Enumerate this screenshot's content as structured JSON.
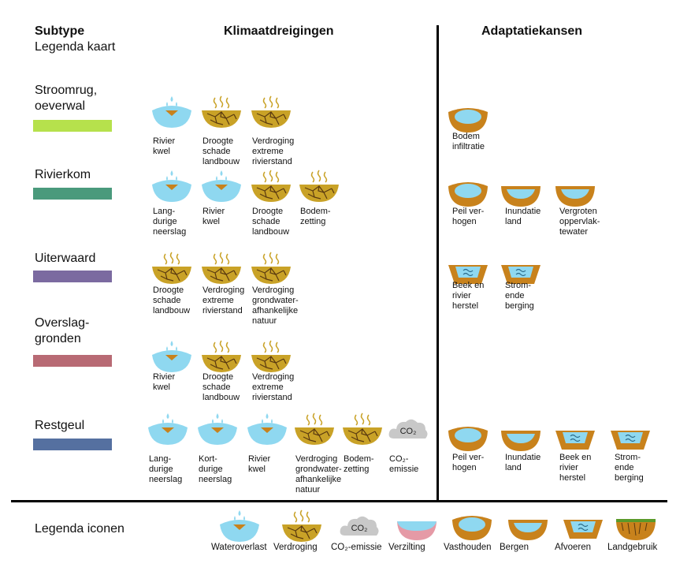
{
  "header": {
    "subtype": "Subtype",
    "legend_map": "Legenda kaart",
    "threats": "Klimaatdreigingen",
    "adaptations": "Adaptatiekansen"
  },
  "colors": {
    "water": "#8fd8f0",
    "soil": "#c8821c",
    "dry": "#c9a227",
    "co2": "#c8c8c8",
    "salt": "#e59aa6",
    "green": "#5a9a2a"
  },
  "rows": [
    {
      "label": "Stroomrug,\noeverwal",
      "swatch": "#b6e14c",
      "threats": [
        {
          "icon": "wateroverlast",
          "caption": "Rivier\nkwel"
        },
        {
          "icon": "verdroging",
          "caption": "Droogte\nschade\nlandbouw"
        },
        {
          "icon": "verdroging",
          "caption": "Verdroging\nextreme\nrivierstand"
        }
      ],
      "adaptations": [
        {
          "icon": "vasthouden",
          "caption": "Bodem\ninfiltratie"
        }
      ]
    },
    {
      "label": "Rivierkom",
      "swatch": "#4a9a7c",
      "threats": [
        {
          "icon": "wateroverlast",
          "caption": "Lang-\ndurige\nneerslag"
        },
        {
          "icon": "wateroverlast",
          "caption": "Rivier\nkwel"
        },
        {
          "icon": "verdroging",
          "caption": "Droogte\nschade\nlandbouw"
        },
        {
          "icon": "verdroging",
          "caption": "Bodem-\nzetting"
        }
      ],
      "adaptations": [
        {
          "icon": "vasthouden",
          "caption": "Peil ver-\nhogen"
        },
        {
          "icon": "bergen",
          "caption": "Inundatie\nland"
        },
        {
          "icon": "bergen",
          "caption": "Vergroten\noppervlak-\ntewater"
        }
      ]
    },
    {
      "label": "Uiterwaard",
      "swatch": "#7b6aa0",
      "threats": [
        {
          "icon": "verdroging",
          "caption": "Droogte\nschade\nlandbouw"
        },
        {
          "icon": "verdroging",
          "caption": "Verdroging\nextreme\nrivierstand"
        },
        {
          "icon": "verdroging",
          "caption": "Verdroging\ngrondwater-\nafhankelijke\nnatuur"
        }
      ],
      "adaptations": [
        {
          "icon": "afvoeren",
          "caption": "Beek en\nrivier\nherstel"
        },
        {
          "icon": "afvoeren",
          "caption": "Strom-\nende\nberging"
        }
      ]
    },
    {
      "label": "Overslag-\ngronden",
      "swatch": "#b86a74",
      "threats": [
        {
          "icon": "wateroverlast",
          "caption": "Rivier\nkwel"
        },
        {
          "icon": "verdroging",
          "caption": "Droogte\nschade\nlandbouw"
        },
        {
          "icon": "verdroging",
          "caption": "Verdroging\nextreme\nrivierstand"
        }
      ],
      "adaptations": []
    },
    {
      "label": "Restgeul",
      "swatch": "#5570a0",
      "threats": [
        {
          "icon": "wateroverlast",
          "caption": "Lang-\ndurige\nneerslag"
        },
        {
          "icon": "wateroverlast",
          "caption": "Kort-\ndurige\nneerslag"
        },
        {
          "icon": "wateroverlast",
          "caption": "Rivier\nkwel"
        },
        {
          "icon": "verdroging",
          "caption": "Verdroging\ngrondwater-\nafhankelijke\nnatuur"
        },
        {
          "icon": "verdroging",
          "caption": "Bodem-\nzetting"
        },
        {
          "icon": "co2",
          "caption": "CO₂-\nemissie"
        }
      ],
      "adaptations": [
        {
          "icon": "vasthouden",
          "caption": "Peil ver-\nhogen"
        },
        {
          "icon": "bergen",
          "caption": "Inundatie\nland"
        },
        {
          "icon": "afvoeren",
          "caption": "Beek en\nrivier\nherstel"
        },
        {
          "icon": "afvoeren",
          "caption": "Strom-\nende\nberging"
        }
      ]
    }
  ],
  "legend": {
    "title": "Legenda iconen",
    "items": [
      {
        "icon": "wateroverlast",
        "label": "Wateroverlast"
      },
      {
        "icon": "verdroging",
        "label": "Verdroging"
      },
      {
        "icon": "co2",
        "label": "CO₂-emissie"
      },
      {
        "icon": "verzilting",
        "label": "Verzilting"
      },
      {
        "icon": "vasthouden",
        "label": "Vasthouden"
      },
      {
        "icon": "bergen",
        "label": "Bergen"
      },
      {
        "icon": "afvoeren",
        "label": "Afvoeren"
      },
      {
        "icon": "landgebruik",
        "label": "Landgebruik"
      }
    ],
    "co2_text": "CO₂"
  }
}
